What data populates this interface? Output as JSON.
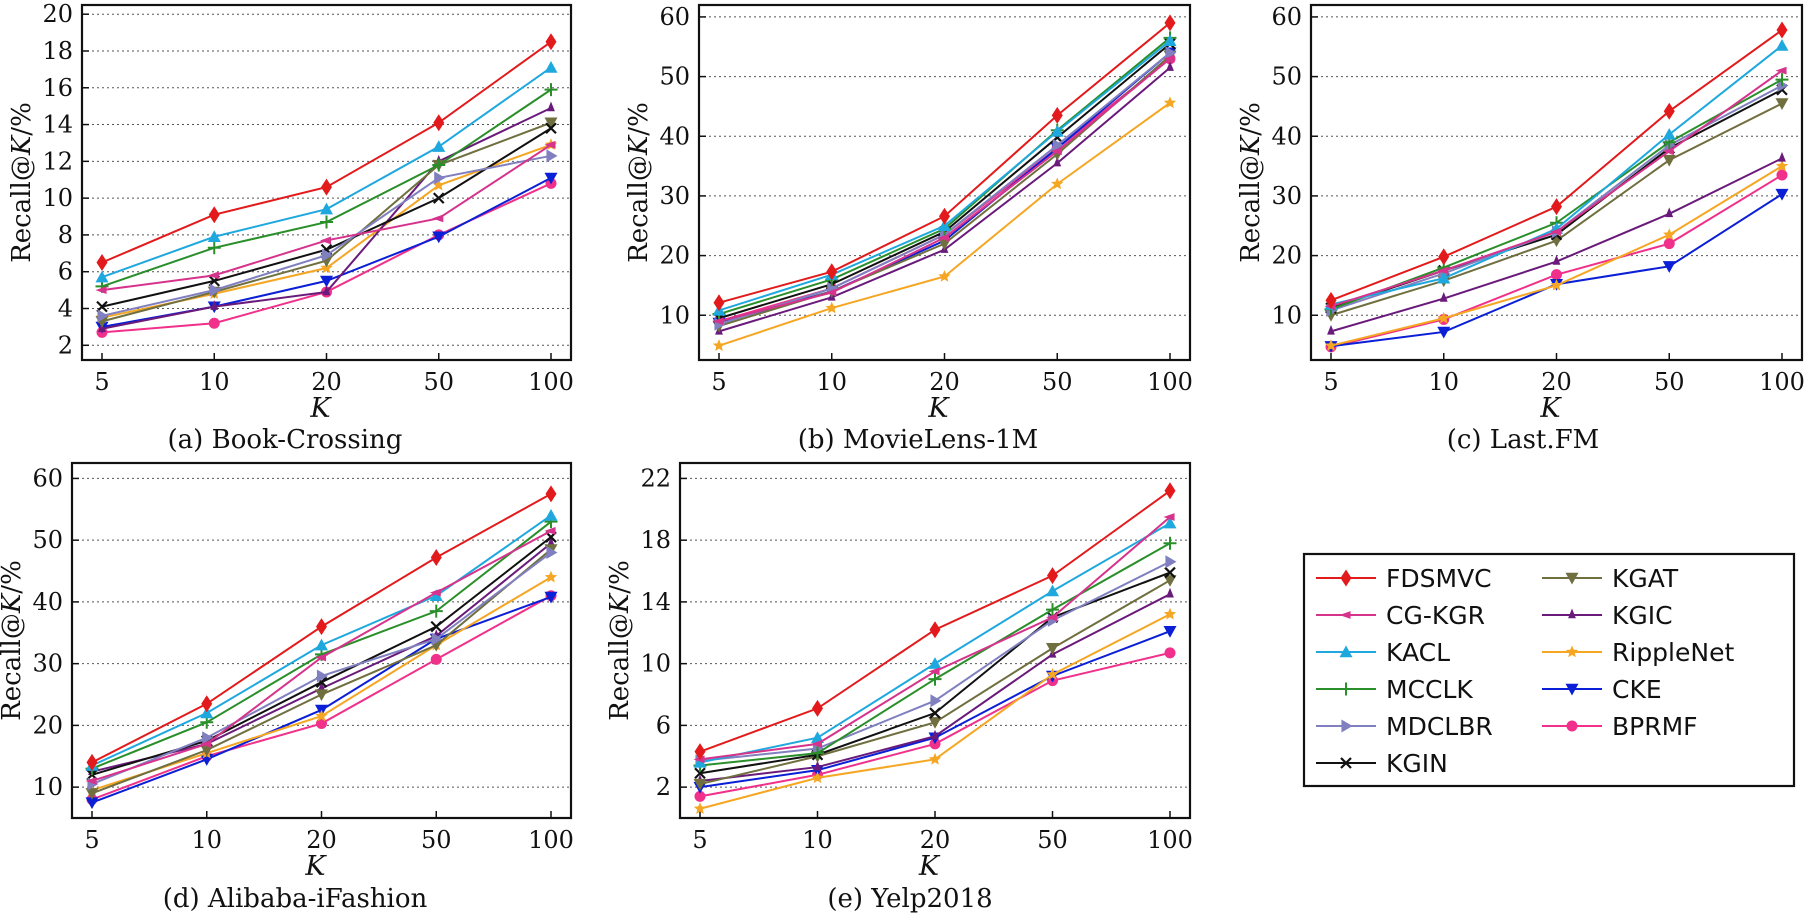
{
  "legend": [
    {
      "name": "FDSMVC",
      "color": "#e31a1c",
      "marker": "diamond"
    },
    {
      "name": "CG-KGR",
      "color": "#d6338c",
      "marker": "tri-left"
    },
    {
      "name": "KACL",
      "color": "#1fa8de",
      "marker": "triangle"
    },
    {
      "name": "MCCLK",
      "color": "#2a8f2a",
      "marker": "plus"
    },
    {
      "name": "MDCLBR",
      "color": "#8080c0",
      "marker": "tri-right"
    },
    {
      "name": "KGIN",
      "color": "#111111",
      "marker": "x"
    },
    {
      "name": "KGAT",
      "color": "#6f6f3f",
      "marker": "tri-down"
    },
    {
      "name": "KGIC",
      "color": "#6a1a7a",
      "marker": "tri-up-small"
    },
    {
      "name": "RippleNet",
      "color": "#f5a623",
      "marker": "star"
    },
    {
      "name": "CKE",
      "color": "#0a1fd6",
      "marker": "tri-down-fill"
    },
    {
      "name": "BPRMF",
      "color": "#f0308a",
      "marker": "circle"
    }
  ],
  "chart_data": [
    {
      "type": "line",
      "caption": "(a) Book-Crossing",
      "xlabel": "K",
      "ylabel": "Recall@K/%",
      "categories": [
        "5",
        "10",
        "20",
        "50",
        "100"
      ],
      "ylim": [
        1.2,
        20.5
      ],
      "yticks": [
        2,
        4,
        6,
        8,
        10,
        12,
        14,
        16,
        18,
        20
      ],
      "grid": true,
      "series": [
        {
          "name": "FDSMVC",
          "values": [
            6.5,
            9.1,
            10.6,
            14.1,
            18.5
          ]
        },
        {
          "name": "CG-KGR",
          "values": [
            5.0,
            5.8,
            7.7,
            8.9,
            12.9
          ]
        },
        {
          "name": "KACL",
          "values": [
            5.7,
            7.9,
            9.4,
            12.8,
            17.1
          ]
        },
        {
          "name": "MCCLK",
          "values": [
            5.2,
            7.3,
            8.7,
            11.8,
            15.9
          ]
        },
        {
          "name": "MDCLBR",
          "values": [
            3.6,
            5.0,
            6.9,
            11.1,
            12.3
          ]
        },
        {
          "name": "KGIN",
          "values": [
            4.1,
            5.5,
            7.2,
            10.0,
            13.8
          ]
        },
        {
          "name": "KGAT",
          "values": [
            3.3,
            4.9,
            6.6,
            11.8,
            14.1
          ]
        },
        {
          "name": "KGIC",
          "values": [
            2.9,
            4.1,
            4.9,
            12.0,
            14.9
          ]
        },
        {
          "name": "RippleNet",
          "values": [
            3.5,
            4.8,
            6.2,
            10.7,
            12.9
          ]
        },
        {
          "name": "CKE",
          "values": [
            3.0,
            4.1,
            5.5,
            7.9,
            11.1
          ]
        },
        {
          "name": "BPRMF",
          "values": [
            2.7,
            3.2,
            4.9,
            8.0,
            10.8
          ]
        }
      ]
    },
    {
      "type": "line",
      "caption": "(b) MovieLens-1M",
      "xlabel": "K",
      "ylabel": "Recall@K/%",
      "categories": [
        "5",
        "10",
        "20",
        "50",
        "100"
      ],
      "ylim": [
        2.5,
        62
      ],
      "yticks": [
        10,
        20,
        30,
        40,
        50,
        60
      ],
      "grid": true,
      "series": [
        {
          "name": "FDSMVC",
          "values": [
            12.1,
            17.3,
            26.6,
            43.5,
            59.0
          ]
        },
        {
          "name": "CG-KGR",
          "values": [
            9.0,
            13.8,
            23.0,
            37.5,
            53.0
          ]
        },
        {
          "name": "KACL",
          "values": [
            10.8,
            16.8,
            25.0,
            40.8,
            56.0
          ]
        },
        {
          "name": "MCCLK",
          "values": [
            10.2,
            16.0,
            24.5,
            41.0,
            56.5
          ]
        },
        {
          "name": "MDCLBR",
          "values": [
            8.5,
            14.5,
            23.5,
            38.5,
            54.0
          ]
        },
        {
          "name": "KGIN",
          "values": [
            9.5,
            15.2,
            24.0,
            39.8,
            55.5
          ]
        },
        {
          "name": "KGAT",
          "values": [
            8.2,
            14.0,
            22.0,
            37.0,
            53.5
          ]
        },
        {
          "name": "KGIC",
          "values": [
            7.3,
            13.0,
            21.0,
            35.5,
            51.5
          ]
        },
        {
          "name": "RippleNet",
          "values": [
            4.9,
            11.2,
            16.5,
            32.0,
            45.6
          ]
        },
        {
          "name": "CKE",
          "values": [
            8.7,
            14.0,
            22.5,
            38.0,
            54.0
          ]
        },
        {
          "name": "BPRMF",
          "values": [
            9.0,
            14.5,
            23.5,
            38.0,
            53.0
          ]
        }
      ]
    },
    {
      "type": "line",
      "caption": "(c) Last.FM",
      "xlabel": "K",
      "ylabel": "Recall@K/%",
      "categories": [
        "5",
        "10",
        "20",
        "50",
        "100"
      ],
      "ylim": [
        2.5,
        62
      ],
      "yticks": [
        10,
        20,
        30,
        40,
        50,
        60
      ],
      "grid": true,
      "series": [
        {
          "name": "FDSMVC",
          "values": [
            12.5,
            19.8,
            28.2,
            44.2,
            57.8
          ]
        },
        {
          "name": "CG-KGR",
          "values": [
            11.5,
            17.5,
            24.0,
            37.5,
            51.0
          ]
        },
        {
          "name": "KACL",
          "values": [
            11.8,
            16.2,
            24.5,
            40.3,
            55.2
          ]
        },
        {
          "name": "MCCLK",
          "values": [
            11.0,
            18.0,
            25.5,
            39.0,
            49.5
          ]
        },
        {
          "name": "MDCLBR",
          "values": [
            10.8,
            17.0,
            24.0,
            38.5,
            48.5
          ]
        },
        {
          "name": "KGIN",
          "values": [
            11.2,
            17.5,
            23.5,
            38.0,
            47.8
          ]
        },
        {
          "name": "KGAT",
          "values": [
            10.0,
            15.8,
            22.5,
            36.0,
            45.5
          ]
        },
        {
          "name": "KGIC",
          "values": [
            7.3,
            12.8,
            19.0,
            27.0,
            36.3
          ]
        },
        {
          "name": "RippleNet",
          "values": [
            4.9,
            9.5,
            15.0,
            23.5,
            35.0
          ]
        },
        {
          "name": "CKE",
          "values": [
            4.8,
            7.2,
            15.2,
            18.2,
            30.3
          ]
        },
        {
          "name": "BPRMF",
          "values": [
            4.7,
            9.3,
            16.8,
            22.0,
            33.5
          ]
        }
      ]
    },
    {
      "type": "line",
      "caption": "(d) Alibaba-iFashion",
      "xlabel": "K",
      "ylabel": "Recall@K/%",
      "categories": [
        "5",
        "10",
        "20",
        "50",
        "100"
      ],
      "ylim": [
        5,
        62.5
      ],
      "yticks": [
        10,
        20,
        30,
        40,
        50,
        60
      ],
      "grid": true,
      "series": [
        {
          "name": "FDSMVC",
          "values": [
            14.0,
            23.5,
            36.0,
            47.2,
            57.5
          ]
        },
        {
          "name": "CG-KGR",
          "values": [
            11.0,
            17.0,
            31.0,
            41.5,
            51.5
          ]
        },
        {
          "name": "KACL",
          "values": [
            13.5,
            22.0,
            33.0,
            41.0,
            54.0
          ]
        },
        {
          "name": "MCCLK",
          "values": [
            13.0,
            20.5,
            31.5,
            38.5,
            53.0
          ]
        },
        {
          "name": "MDCLBR",
          "values": [
            10.5,
            18.0,
            28.0,
            34.0,
            48.0
          ]
        },
        {
          "name": "KGIN",
          "values": [
            12.0,
            17.5,
            27.0,
            36.0,
            50.5
          ]
        },
        {
          "name": "KGAT",
          "values": [
            9.0,
            16.0,
            25.0,
            33.0,
            48.5
          ]
        },
        {
          "name": "KGIC",
          "values": [
            12.5,
            17.0,
            26.0,
            34.5,
            49.5
          ]
        },
        {
          "name": "RippleNet",
          "values": [
            9.5,
            15.5,
            21.5,
            33.0,
            44.0
          ]
        },
        {
          "name": "CKE",
          "values": [
            7.5,
            14.5,
            22.5,
            34.0,
            40.8
          ]
        },
        {
          "name": "BPRMF",
          "values": [
            8.0,
            15.0,
            20.3,
            30.7,
            41.0
          ]
        }
      ]
    },
    {
      "type": "line",
      "caption": "(e) Yelp2018",
      "xlabel": "K",
      "ylabel": "Recall@K/%",
      "categories": [
        "5",
        "10",
        "20",
        "50",
        "100"
      ],
      "ylim": [
        0,
        23
      ],
      "yticks": [
        2,
        6,
        10,
        14,
        18,
        22
      ],
      "grid": true,
      "series": [
        {
          "name": "FDSMVC",
          "values": [
            4.3,
            7.1,
            12.2,
            15.7,
            21.2
          ]
        },
        {
          "name": "CG-KGR",
          "values": [
            3.8,
            4.8,
            9.5,
            13.0,
            19.5
          ]
        },
        {
          "name": "KACL",
          "values": [
            3.6,
            5.2,
            10.0,
            14.7,
            19.1
          ]
        },
        {
          "name": "MCCLK",
          "values": [
            3.4,
            4.2,
            9.0,
            13.5,
            17.8
          ]
        },
        {
          "name": "MDCLBR",
          "values": [
            3.7,
            4.5,
            7.6,
            12.8,
            16.6
          ]
        },
        {
          "name": "KGIN",
          "values": [
            2.9,
            4.1,
            6.8,
            13.0,
            15.9
          ]
        },
        {
          "name": "KGAT",
          "values": [
            2.2,
            4.0,
            6.2,
            11.0,
            15.4
          ]
        },
        {
          "name": "KGIC",
          "values": [
            2.4,
            3.3,
            5.3,
            10.6,
            14.5
          ]
        },
        {
          "name": "RippleNet",
          "values": [
            0.6,
            2.6,
            3.8,
            9.3,
            13.2
          ]
        },
        {
          "name": "CKE",
          "values": [
            2.0,
            3.1,
            5.2,
            9.2,
            12.1
          ]
        },
        {
          "name": "BPRMF",
          "values": [
            1.4,
            2.8,
            4.8,
            8.9,
            10.7
          ]
        }
      ]
    }
  ]
}
